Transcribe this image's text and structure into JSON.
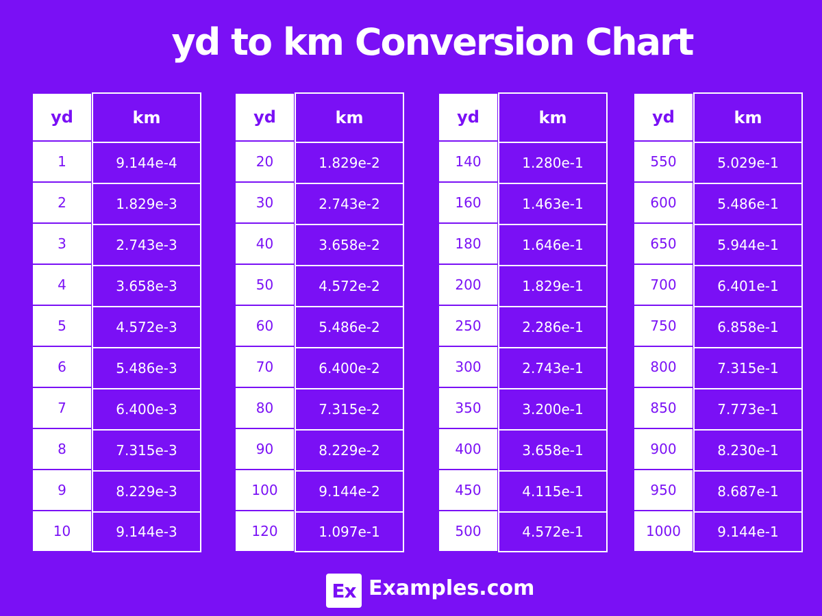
{
  "header": {
    "title": "yd to km Conversion Chart"
  },
  "tables": [
    {
      "columns": [
        "yd",
        "km"
      ],
      "rows": [
        [
          "1",
          "9.144e-4"
        ],
        [
          "2",
          "1.829e-3"
        ],
        [
          "3",
          "2.743e-3"
        ],
        [
          "4",
          "3.658e-3"
        ],
        [
          "5",
          "4.572e-3"
        ],
        [
          "6",
          "5.486e-3"
        ],
        [
          "7",
          "6.400e-3"
        ],
        [
          "8",
          "7.315e-3"
        ],
        [
          "9",
          "8.229e-3"
        ],
        [
          "10",
          "9.144e-3"
        ]
      ]
    },
    {
      "columns": [
        "yd",
        "km"
      ],
      "rows": [
        [
          "20",
          "1.829e-2"
        ],
        [
          "30",
          "2.743e-2"
        ],
        [
          "40",
          "3.658e-2"
        ],
        [
          "50",
          "4.572e-2"
        ],
        [
          "60",
          "5.486e-2"
        ],
        [
          "70",
          "6.400e-2"
        ],
        [
          "80",
          "7.315e-2"
        ],
        [
          "90",
          "8.229e-2"
        ],
        [
          "100",
          "9.144e-2"
        ],
        [
          "120",
          "1.097e-1"
        ]
      ]
    },
    {
      "columns": [
        "yd",
        "km"
      ],
      "rows": [
        [
          "140",
          "1.280e-1"
        ],
        [
          "160",
          "1.463e-1"
        ],
        [
          "180",
          "1.646e-1"
        ],
        [
          "200",
          "1.829e-1"
        ],
        [
          "250",
          "2.286e-1"
        ],
        [
          "300",
          "2.743e-1"
        ],
        [
          "350",
          "3.200e-1"
        ],
        [
          "400",
          "3.658e-1"
        ],
        [
          "450",
          "4.115e-1"
        ],
        [
          "500",
          "4.572e-1"
        ]
      ]
    },
    {
      "columns": [
        "yd",
        "km"
      ],
      "rows": [
        [
          "550",
          "5.029e-1"
        ],
        [
          "600",
          "5.486e-1"
        ],
        [
          "650",
          "5.944e-1"
        ],
        [
          "700",
          "6.401e-1"
        ],
        [
          "750",
          "6.858e-1"
        ],
        [
          "800",
          "7.315e-1"
        ],
        [
          "850",
          "7.773e-1"
        ],
        [
          "900",
          "8.230e-1"
        ],
        [
          "950",
          "8.687e-1"
        ],
        [
          "1000",
          "9.144e-1"
        ]
      ]
    }
  ],
  "footer": {
    "logo": "Ex",
    "brand": "Examples.com"
  }
}
